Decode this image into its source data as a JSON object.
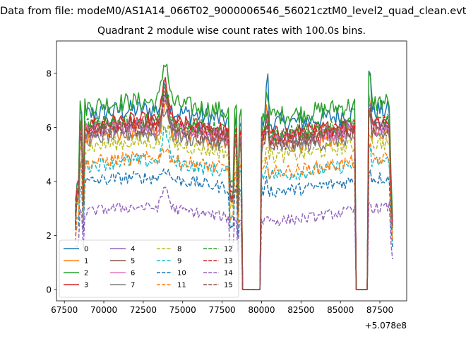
{
  "figure": {
    "suptitle": "Data from file: modeM0/AS1A14_066T02_9000006546_56021cztM0_level2_quad_clean.evt"
  },
  "chart_data": {
    "type": "line",
    "title": "Quadrant 2 module wise count rates with 100.0s bins.",
    "xlabel": "",
    "ylabel": "",
    "x_offset_label": "+5.078e8",
    "xlim": [
      67000,
      89200
    ],
    "ylim": [
      -0.42,
      9.2
    ],
    "xticks": [
      67500,
      70000,
      72500,
      75000,
      77500,
      80000,
      82500,
      85000,
      87500
    ],
    "xtick_labels": [
      "67500",
      "70000",
      "72500",
      "75000",
      "77500",
      "80000",
      "82500",
      "85000",
      "87500"
    ],
    "yticks": [
      0,
      2,
      4,
      6,
      8
    ],
    "ytick_labels": [
      "0",
      "2",
      "4",
      "6",
      "8"
    ],
    "grid": false,
    "legend_placement": "lower-left",
    "legend_columns": 4,
    "x_start": 68200,
    "x_end": 88300,
    "bin": 100,
    "gaps": [
      [
        78750,
        79950
      ],
      [
        86000,
        86700
      ]
    ],
    "series": [
      {
        "name": "0",
        "level": 6.4,
        "noise": 0.38,
        "color": "#1f77b4",
        "style": "solid",
        "peak": 0.9,
        "spike": 1.6
      },
      {
        "name": "1",
        "level": 5.6,
        "noise": 0.32,
        "color": "#ff7f0e",
        "style": "solid",
        "peak": 1.0,
        "spike": 1.3
      },
      {
        "name": "2",
        "level": 6.7,
        "noise": 0.36,
        "color": "#2ca02c",
        "style": "solid",
        "peak": 1.6,
        "spike": 0.9
      },
      {
        "name": "3",
        "level": 6.0,
        "noise": 0.32,
        "color": "#d62728",
        "style": "solid",
        "peak": 1.5,
        "spike": 0.6
      },
      {
        "name": "4",
        "level": 5.8,
        "noise": 0.3,
        "color": "#9467bd",
        "style": "solid",
        "peak": 1.0,
        "spike": 0.6
      },
      {
        "name": "5",
        "level": 5.9,
        "noise": 0.3,
        "color": "#8c564b",
        "style": "solid",
        "peak": 1.2,
        "spike": 0.6
      },
      {
        "name": "6",
        "level": 5.8,
        "noise": 0.3,
        "color": "#e377c2",
        "style": "solid",
        "peak": 1.1,
        "spike": 0.6
      },
      {
        "name": "7",
        "level": 5.5,
        "noise": 0.3,
        "color": "#7f7f7f",
        "style": "solid",
        "peak": 1.0,
        "spike": 0.5
      },
      {
        "name": "8",
        "level": 5.2,
        "noise": 0.28,
        "color": "#bcbd22",
        "style": "dashed",
        "peak": 0.8,
        "spike": 0.5
      },
      {
        "name": "9",
        "level": 4.5,
        "noise": 0.26,
        "color": "#17becf",
        "style": "dashed",
        "peak": 1.2,
        "spike": 0.4
      },
      {
        "name": "10",
        "level": 3.9,
        "noise": 0.24,
        "color": "#1f77b4",
        "style": "dashed",
        "peak": 0.4,
        "spike": 0.3
      },
      {
        "name": "11",
        "level": 4.6,
        "noise": 0.26,
        "color": "#ff7f0e",
        "style": "dashed",
        "peak": 0.5,
        "spike": 0.4
      },
      {
        "name": "12",
        "level": 6.0,
        "noise": 0.3,
        "color": "#2ca02c",
        "style": "dashed",
        "peak": 1.2,
        "spike": 0.7
      },
      {
        "name": "13",
        "level": 5.9,
        "noise": 0.3,
        "color": "#d62728",
        "style": "dashed",
        "peak": 1.1,
        "spike": 0.6
      },
      {
        "name": "14",
        "level": 2.8,
        "noise": 0.2,
        "color": "#9467bd",
        "style": "dashed",
        "peak": 0.8,
        "spike": 0.2
      },
      {
        "name": "15",
        "level": 5.7,
        "noise": 0.3,
        "color": "#8c564b",
        "style": "dashed",
        "peak": 1.0,
        "spike": 0.6
      }
    ]
  }
}
